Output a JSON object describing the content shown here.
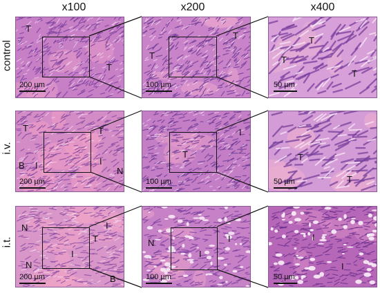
{
  "columns": [
    "x100",
    "x200",
    "x400"
  ],
  "rows": [
    {
      "label": "control",
      "panels": [
        {
          "scale": "200 µm",
          "marks": [
            "T",
            "T"
          ],
          "bg": "#c77fc6",
          "fiber": "#7a3f9c",
          "light": "#f1d5ee",
          "stroma": "#e59ac8",
          "variant": "dense"
        },
        {
          "scale": "100 µm",
          "marks": [
            "T",
            "T"
          ],
          "bg": "#c983c8",
          "fiber": "#6e3a96",
          "light": "#f4dcf1",
          "stroma": "#e9a6cf",
          "variant": "dense"
        },
        {
          "scale": "50 µm",
          "marks": [
            "T",
            "T",
            "T"
          ],
          "bg": "#d8a0d8",
          "fiber": "#7b3f9f",
          "light": "#f6e4f5",
          "stroma": "#eab0d6",
          "variant": "coarse"
        }
      ]
    },
    {
      "label": "i.v.",
      "panels": [
        {
          "scale": "200 µm",
          "marks": [
            "T",
            "T",
            "B",
            "I",
            "I",
            "N"
          ],
          "bg": "#d48cc6",
          "fiber": "#83479f",
          "light": "#f3d6ec",
          "stroma": "#ee9fc4",
          "variant": "mixed"
        },
        {
          "scale": "100 µm",
          "marks": [
            "T",
            "I"
          ],
          "bg": "#c47ec6",
          "fiber": "#6c3a94",
          "light": "#f0d4ee",
          "stroma": "#e69cc8",
          "variant": "dense"
        },
        {
          "scale": "50 µm",
          "marks": [
            "T",
            "T"
          ],
          "bg": "#d49cd6",
          "fiber": "#77409c",
          "light": "#f6e2f4",
          "stroma": "#eeb0d0",
          "variant": "coarse"
        }
      ]
    },
    {
      "label": "i.t.",
      "panels": [
        {
          "scale": "200 µm",
          "marks": [
            "N",
            "I",
            "T",
            "I",
            "N",
            "B"
          ],
          "bg": "#d996c9",
          "fiber": "#8a4aa2",
          "light": "#f5dcef",
          "stroma": "#f0a6c6",
          "variant": "necrotic"
        },
        {
          "scale": "100 µm",
          "marks": [
            "N",
            "I",
            "I"
          ],
          "bg": "#c781c6",
          "fiber": "#7a3f9e",
          "light": "#f8eaf6",
          "stroma": "#e9a2cb",
          "variant": "cracked"
        },
        {
          "scale": "50 µm",
          "marks": [
            "I",
            "I"
          ],
          "bg": "#b767b8",
          "fiber": "#6a2f8e",
          "light": "#fbf0fa",
          "stroma": "#d98dc6",
          "variant": "cracked"
        }
      ]
    }
  ]
}
